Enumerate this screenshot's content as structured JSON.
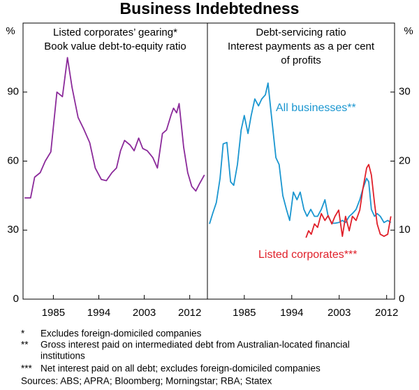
{
  "title": "Business Indebtedness",
  "footnotes": [
    {
      "marker": "*",
      "lines": [
        "Excludes foreign-domiciled companies"
      ]
    },
    {
      "marker": "**",
      "lines": [
        "Gross interest paid on intermediated debt from Australian-located financial",
        "institutions"
      ]
    },
    {
      "marker": "***",
      "lines": [
        "Net interest paid on all debt; excludes foreign-domiciled companies"
      ]
    }
  ],
  "sources": "Sources: ABS; APRA; Bloomberg; Morningstar; RBA; Statex",
  "chart_data": [
    {
      "type": "line",
      "title": "Listed corporates’ gearing*",
      "subtitle": [
        "Book value debt-to-equity ratio"
      ],
      "ylabel": "%",
      "xlim": [
        1979,
        2015.5
      ],
      "xticks": [
        1985,
        1994,
        2003,
        2012
      ],
      "ylim": [
        0,
        120
      ],
      "yticks": [
        0,
        30,
        60,
        90
      ],
      "series": [
        {
          "name": "Gearing",
          "color": "#8b2a9a",
          "x": [
            1979.3,
            1980.5,
            1981.3,
            1982.4,
            1983.4,
            1984.5,
            1985.7,
            1986.8,
            1987.8,
            1988.7,
            1989.9,
            1991,
            1992.2,
            1993.3,
            1994.5,
            1995.5,
            1996.6,
            1997.5,
            1998.3,
            1999.1,
            2000.2,
            2001,
            2001.9,
            2002.7,
            2003.6,
            2004.7,
            2005.6,
            2006.6,
            2007.4,
            2008.3,
            2008.8,
            2009.4,
            2009.9,
            2010.8,
            2011.6,
            2012.4,
            2013.2,
            2013.9,
            2014.9
          ],
          "values": [
            44,
            44,
            53,
            55,
            60,
            64,
            90,
            88,
            105,
            92,
            79,
            74,
            68,
            57,
            52,
            51.5,
            55,
            57,
            64.5,
            69,
            67,
            64.5,
            70,
            65.5,
            64.5,
            61.5,
            57,
            72,
            73.5,
            80,
            83,
            81,
            85,
            66,
            55,
            49,
            47,
            50,
            54
          ]
        }
      ]
    },
    {
      "type": "line",
      "title": "Debt-servicing ratio",
      "subtitle": [
        "Interest payments as a per cent",
        "of profits"
      ],
      "ylabel": "%",
      "xlim": [
        1978,
        2013.5
      ],
      "xticks": [
        1985,
        1994,
        2003,
        2012
      ],
      "ylim": [
        0,
        40
      ],
      "yticks": [
        0,
        10,
        20,
        30
      ],
      "series": [
        {
          "name": "All businesses**",
          "color": "#1a96d0",
          "x": [
            1978.4,
            1979,
            1979.7,
            1980.4,
            1981,
            1981.7,
            1982.4,
            1983,
            1983.7,
            1984.4,
            1985,
            1985.7,
            1986.3,
            1987,
            1987.7,
            1988.3,
            1989,
            1989.5,
            1990,
            1991,
            1991.6,
            1992.3,
            1993,
            1993.6,
            1994.3,
            1995,
            1995.6,
            1996.3,
            1996.9,
            1997.6,
            1998.3,
            1998.9,
            1999.6,
            2000.3,
            2000.9,
            2001.6,
            2002.2,
            2002.9,
            2003.6,
            2004.2,
            2004.9,
            2005.5,
            2006.2,
            2006.9,
            2007.5,
            2008.2,
            2008.6,
            2009.1,
            2009.7,
            2010.2,
            2010.8,
            2011.5,
            2012.2,
            2012.8
          ],
          "values": [
            10.9,
            12.4,
            14,
            17.5,
            22.5,
            22.7,
            17,
            16.5,
            19.5,
            24.5,
            26.6,
            24,
            26.6,
            29,
            28,
            29,
            29.6,
            31.3,
            27.6,
            20.5,
            19.5,
            15,
            13,
            11.4,
            15.5,
            14.4,
            15.5,
            13,
            12,
            13,
            12,
            12,
            13,
            14.4,
            12,
            11,
            11,
            11.1,
            11.4,
            11.1,
            12,
            12.4,
            13,
            14.4,
            16,
            17.5,
            17,
            13,
            12,
            12.4,
            12,
            11.1,
            11.4,
            11.1
          ]
        },
        {
          "name": "Listed corporates***",
          "color": "#e0202a",
          "x": [
            1996.7,
            1997.2,
            1997.7,
            1998.3,
            1998.9,
            1999.6,
            2000.3,
            2000.9,
            2001.6,
            2002.2,
            2002.9,
            2003.6,
            2004.2,
            2004.9,
            2005.5,
            2006.2,
            2006.9,
            2007.5,
            2008.2,
            2008.6,
            2009.1,
            2009.7,
            2010.2,
            2010.8,
            2011.5,
            2012.2,
            2012.8
          ],
          "values": [
            8.9,
            9.9,
            9.4,
            10.9,
            10.4,
            12.4,
            11.4,
            12.1,
            10.9,
            12,
            12.9,
            9.1,
            12,
            9.9,
            12,
            11.4,
            12.9,
            16,
            19,
            19.5,
            18,
            13.9,
            10.9,
            9.4,
            9.1,
            9.4,
            12
          ]
        }
      ]
    }
  ]
}
